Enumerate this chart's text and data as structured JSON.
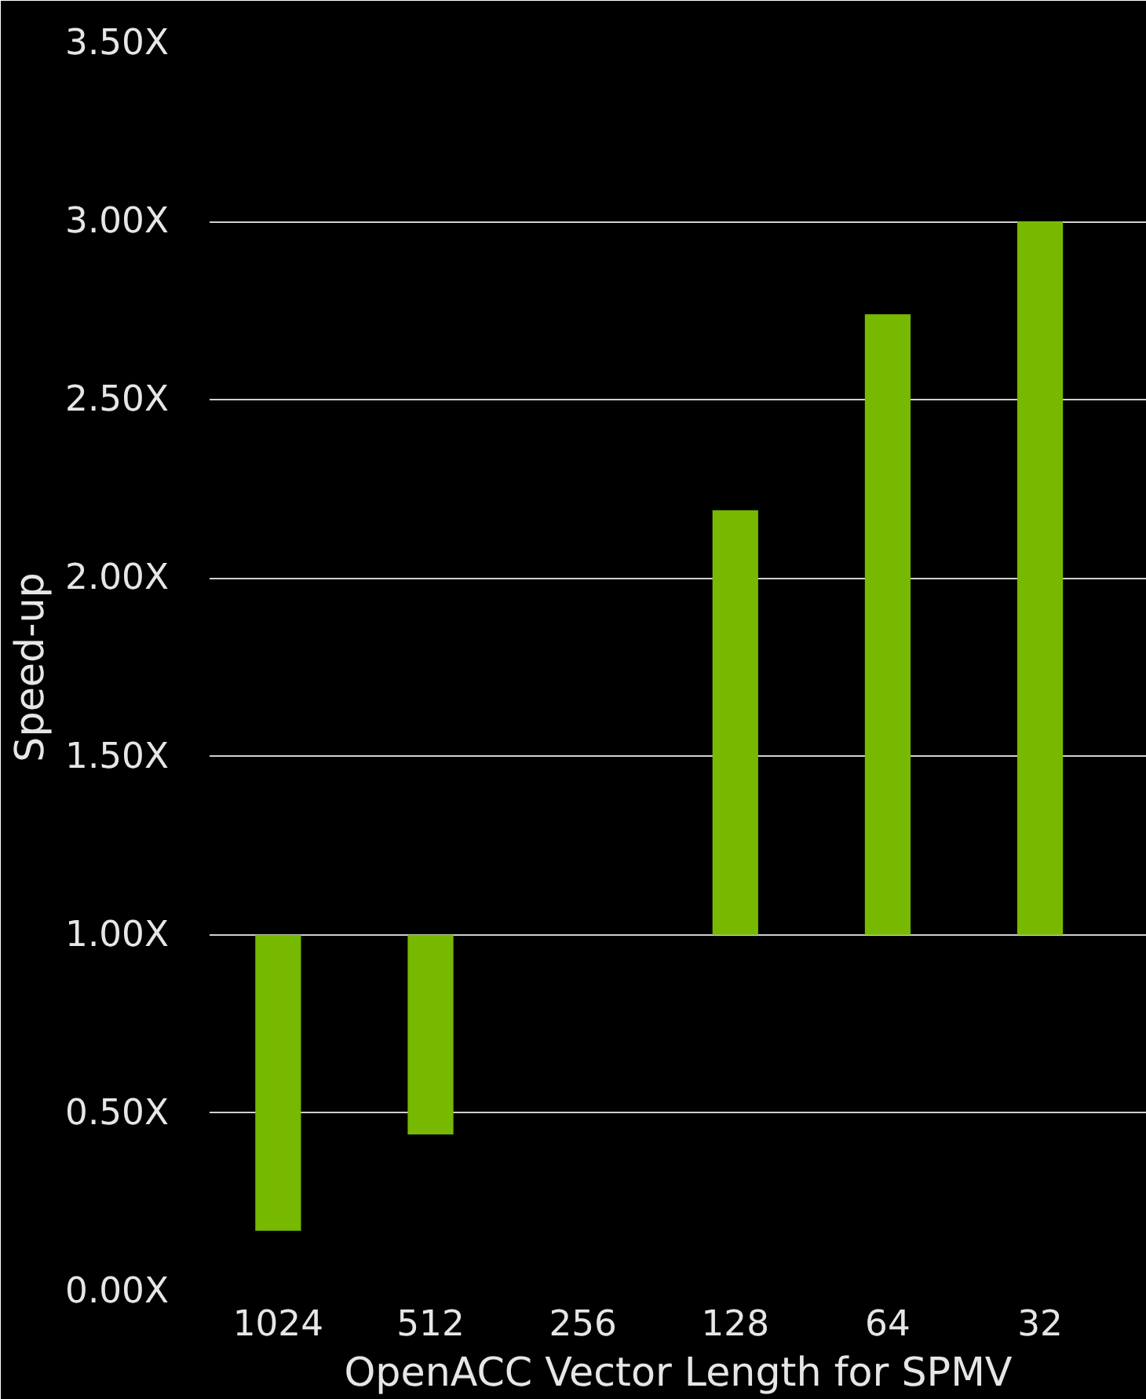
{
  "chart_data": {
    "type": "bar",
    "xlabel": "OpenACC Vector Length for SPMV",
    "ylabel": "Speed-up",
    "categories": [
      "1024",
      "512",
      "256",
      "128",
      "64",
      "32"
    ],
    "base": [
      1,
      1,
      null,
      1,
      1,
      1
    ],
    "values": [
      -0.83,
      -0.56,
      null,
      1.19,
      1.74,
      2.0
    ],
    "color": "#76b900",
    "ylim": [
      0,
      3.5
    ],
    "yticks": [
      {
        "value": 0,
        "label": "0.00X"
      },
      {
        "value": 0.5,
        "label": "0.50X"
      },
      {
        "value": 1,
        "label": "1.00X"
      },
      {
        "value": 1.5,
        "label": "1.50X"
      },
      {
        "value": 2,
        "label": "2.00X"
      },
      {
        "value": 2.5,
        "label": "2.50X"
      },
      {
        "value": 3,
        "label": "3.00X"
      },
      {
        "value": 3.5,
        "label": "3.50X"
      }
    ],
    "grid": "y"
  }
}
